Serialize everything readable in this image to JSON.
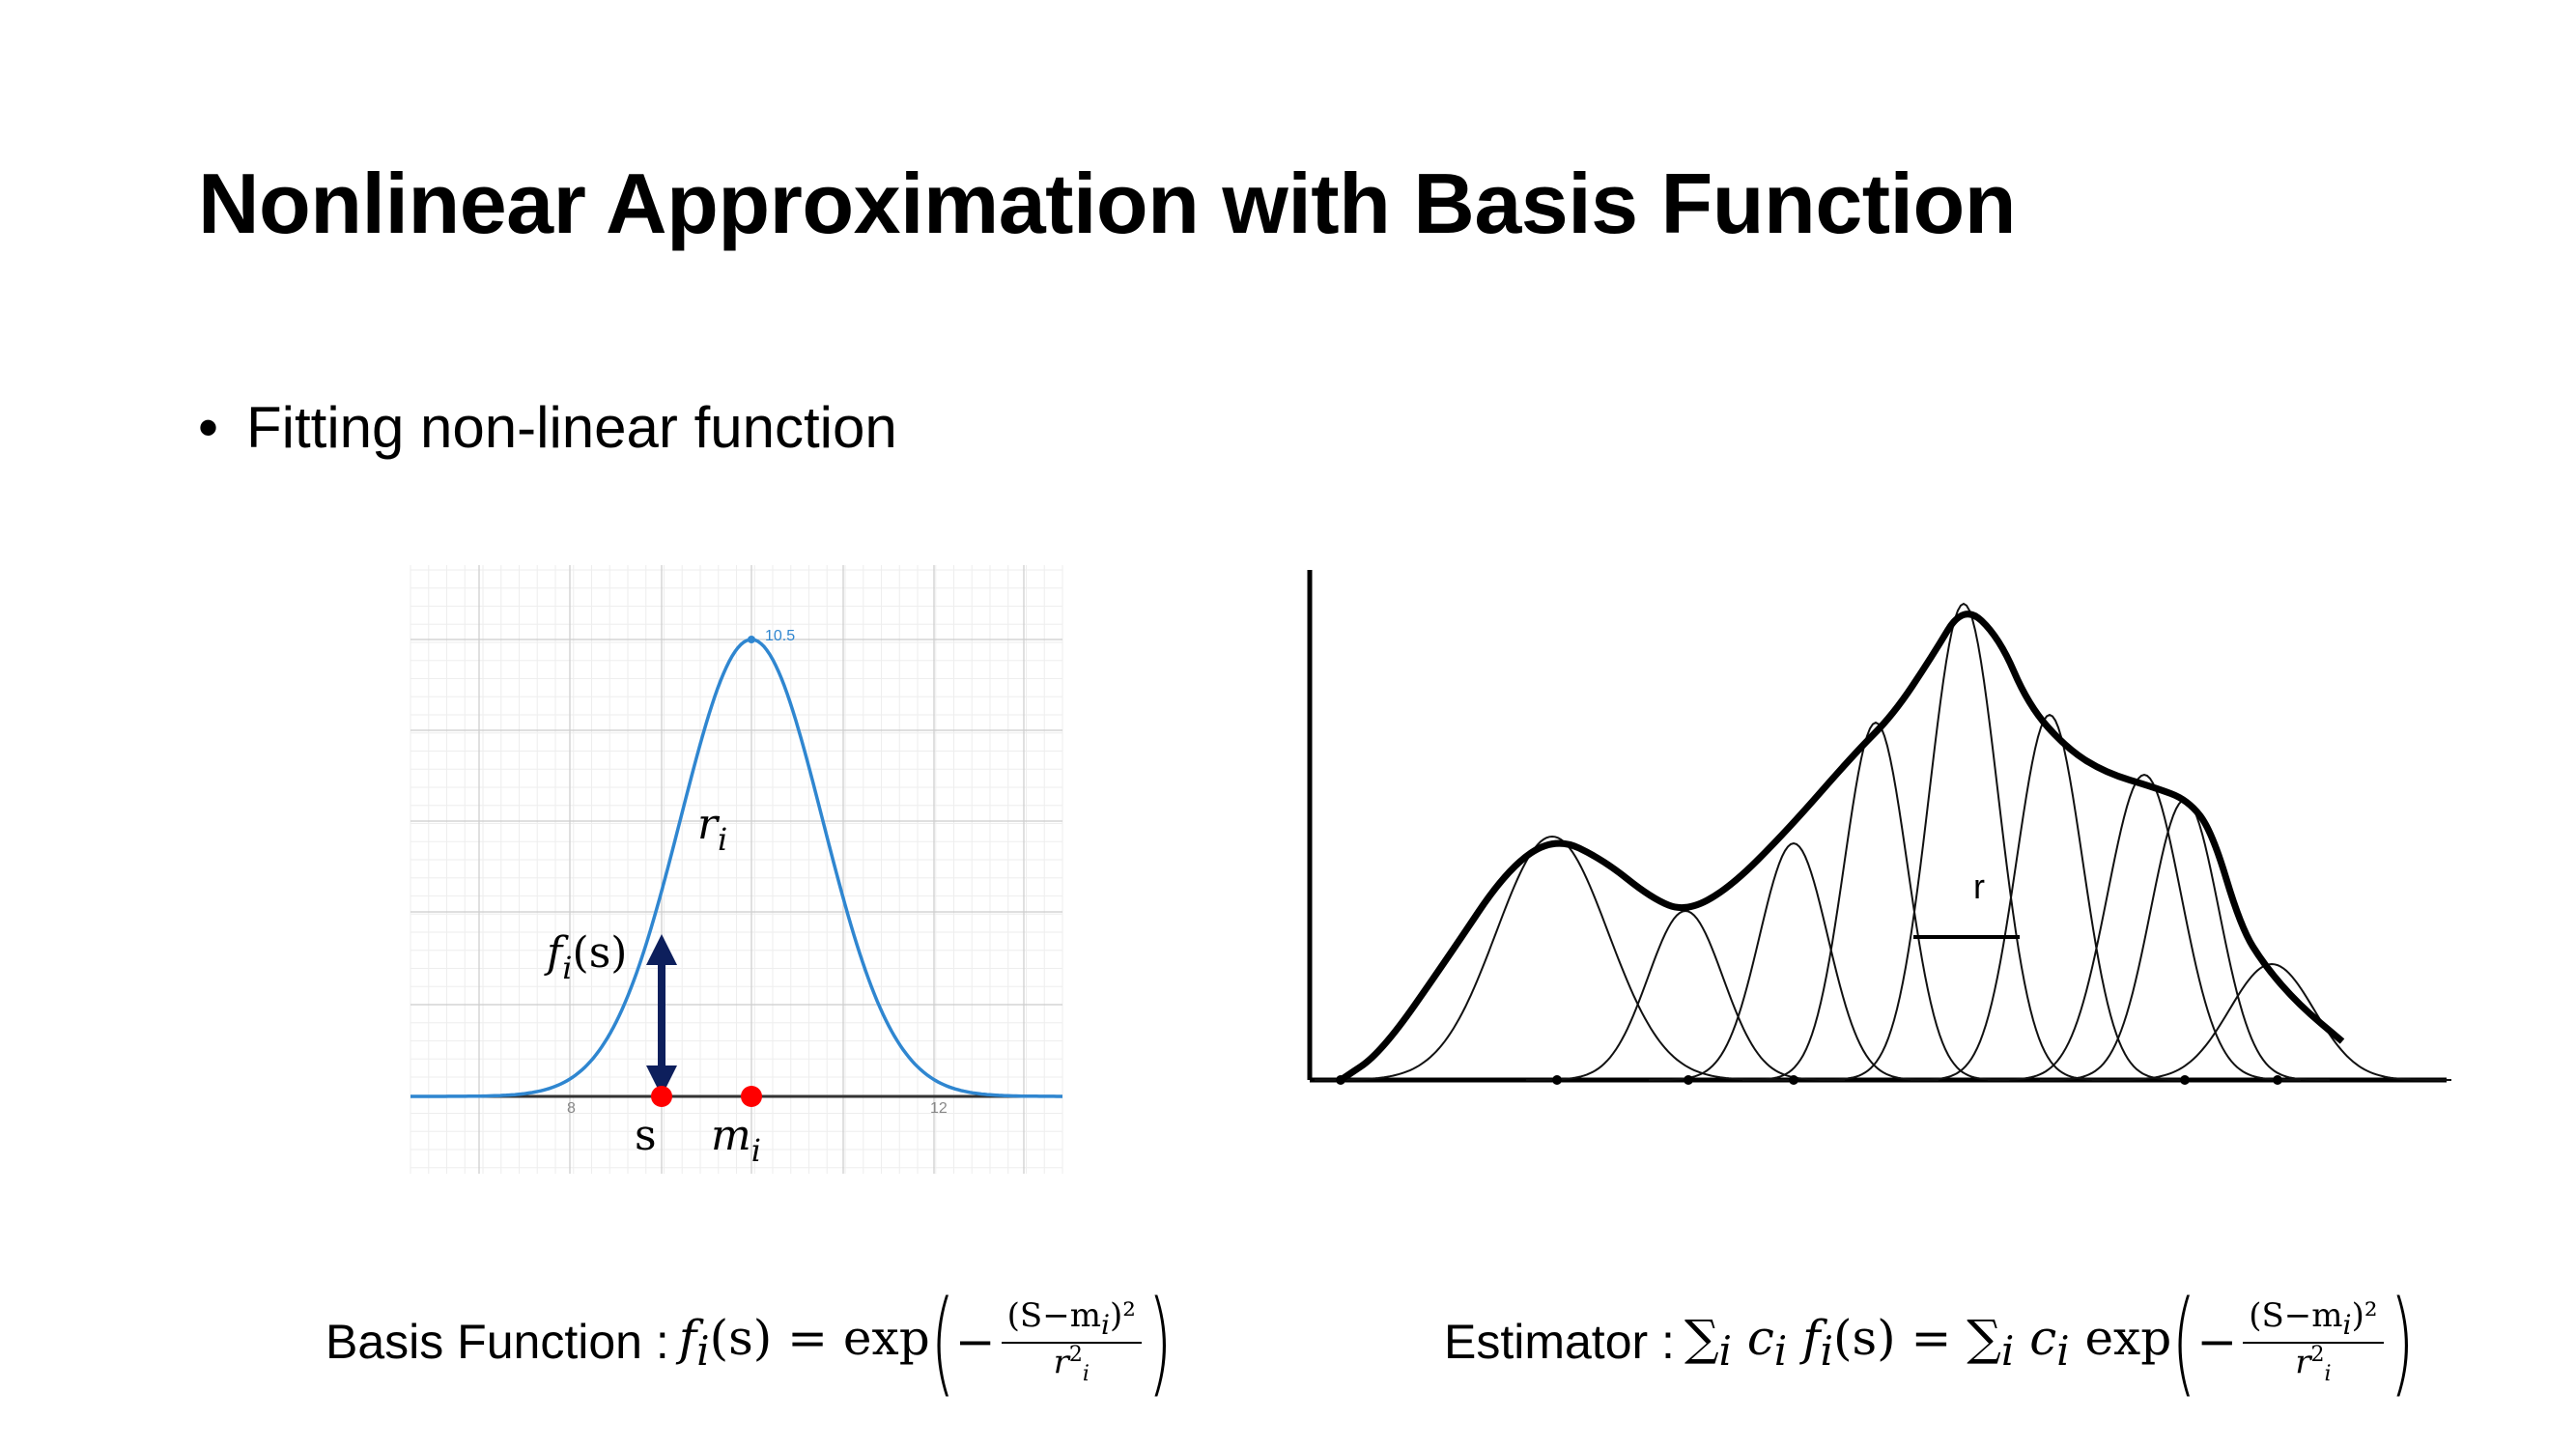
{
  "slide": {
    "title": "Nonlinear Approximation with Basis Function",
    "bullet": "Fitting non-linear function"
  },
  "left_plot": {
    "peak_label": "10.5",
    "tick_left": "8",
    "tick_right": "12",
    "r_label": "r",
    "r_sub": "i",
    "f_label": "f",
    "f_sub": "i",
    "f_arg": "(s)",
    "s_label": "s",
    "m_label": "m",
    "m_sub": "i",
    "curve_color": "#2f86d0",
    "arrow_color": "#0d1f5c",
    "point_color": "#ff0000"
  },
  "right_plot": {
    "r_label": "r"
  },
  "formulas": {
    "basis_label": "Basis Function : ",
    "basis_lhs": "f",
    "basis_lhs_sub": "i",
    "basis_lhs_arg": "(s) = exp",
    "basis_num": "(S−m",
    "basis_num_sub": "i",
    "basis_num_tail": ")²",
    "basis_den": "r",
    "basis_den_sup": "2",
    "basis_den_sub": "i",
    "estimator_label": "Estimator : ",
    "est_sum1": "∑",
    "est_sum1_sub": "i",
    "est_c": " c",
    "est_c_sub": "i",
    "est_f": " f",
    "est_f_sub": "i",
    "est_mid": "(s) = ∑",
    "est_sum2_sub": "i",
    "est_c2": " c",
    "est_c2_sub": "i",
    "est_exp": " exp",
    "est_num": "(S−m",
    "est_num_sub": "i",
    "est_num_tail": ")²",
    "est_den": "r",
    "est_den_sup": "2",
    "est_den_sub": "i"
  }
}
